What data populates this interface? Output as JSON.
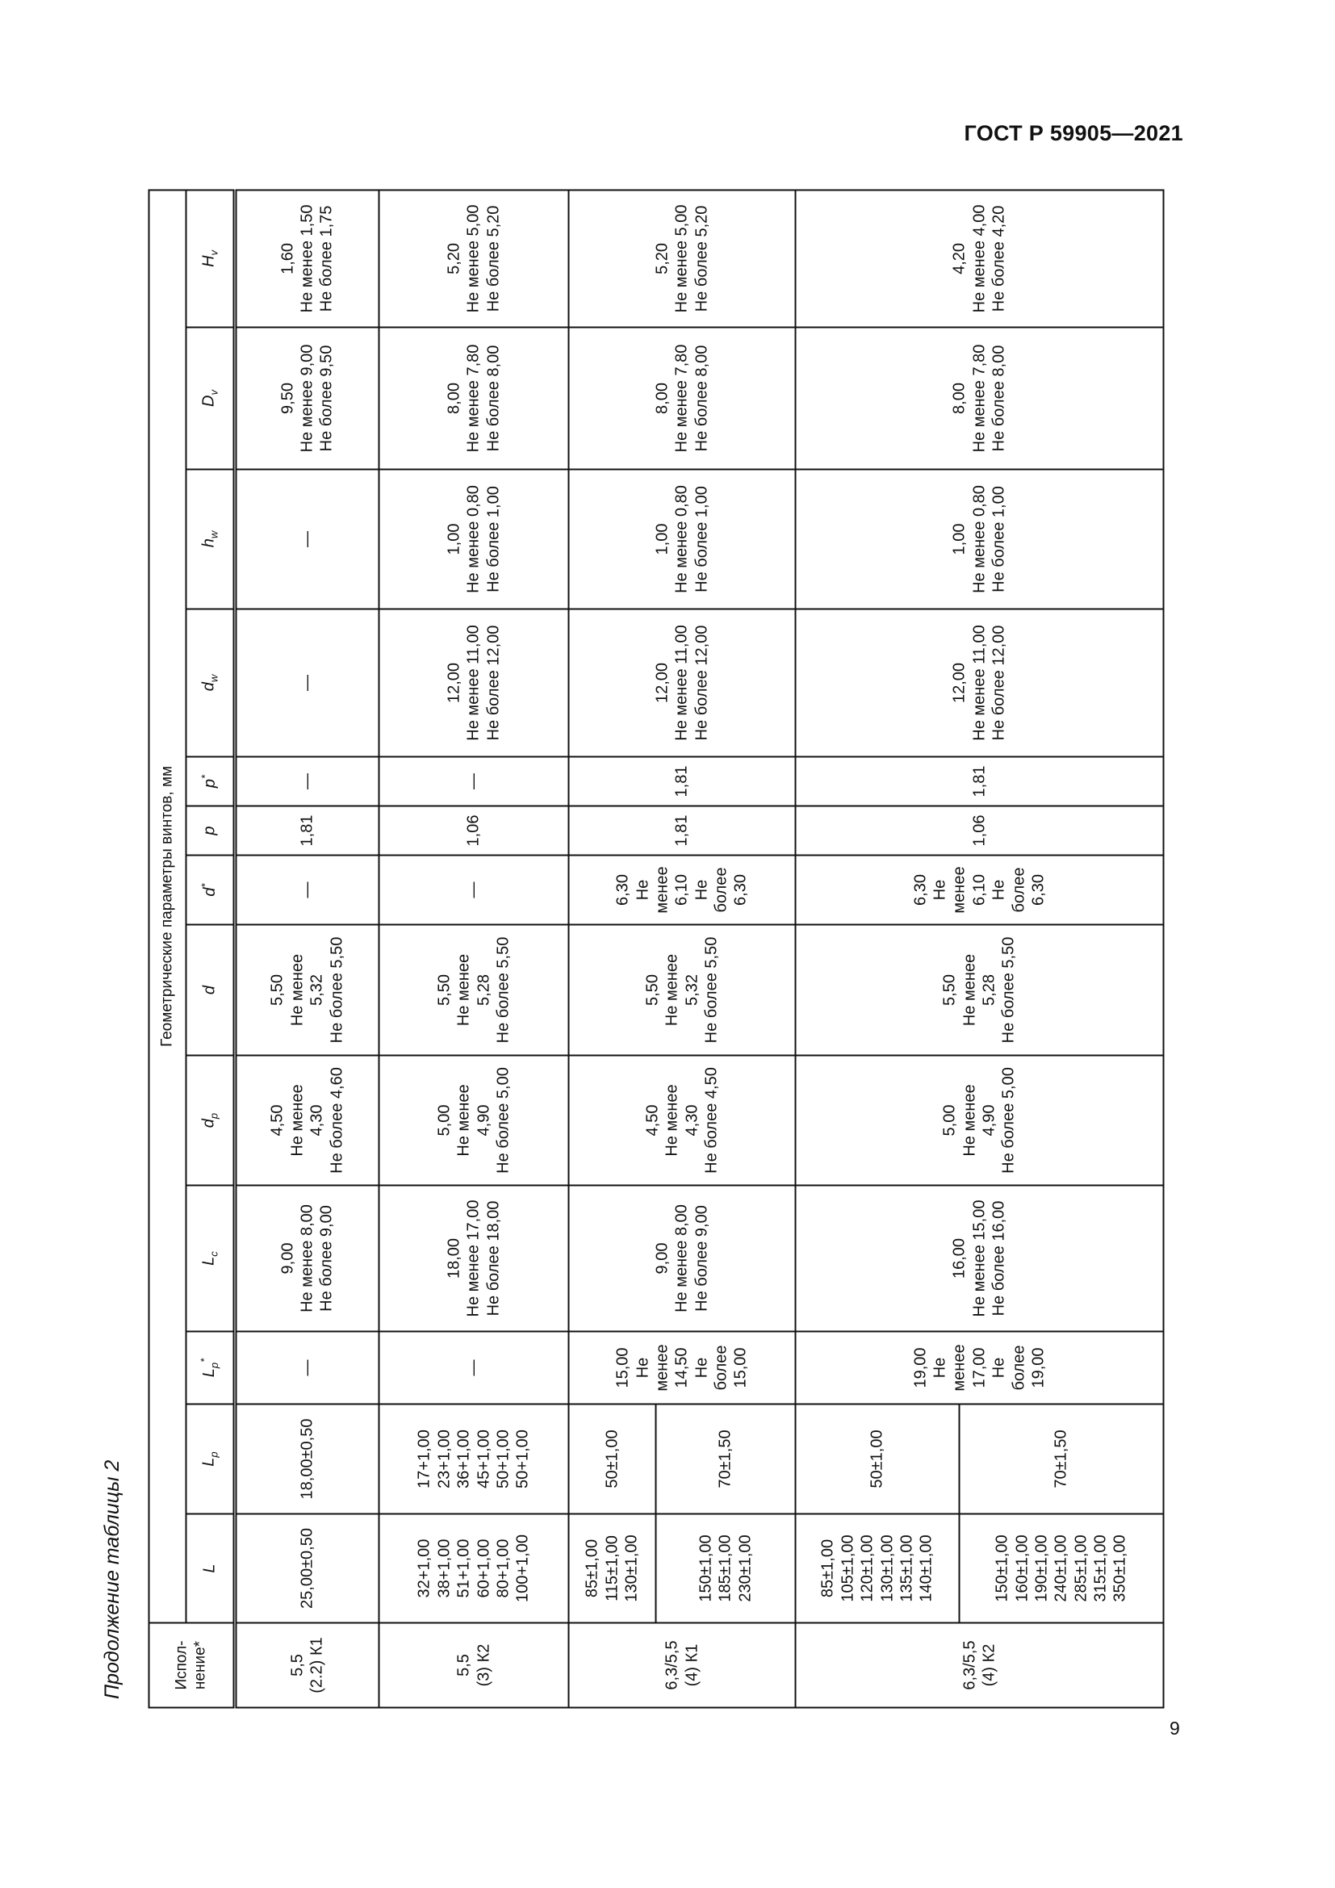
{
  "header": {
    "doc_code": "ГОСТ Р 59905—2021"
  },
  "caption": "Продолжение таблицы 2",
  "page_number": "9",
  "table": {
    "col_isp": "Испол-\nнение*",
    "group_header": "Геометрические параметры винтов, мм",
    "symbols": {
      "L": "L",
      "Lp": "L",
      "Lp_sub": "p",
      "Lps": "L",
      "Lps_sub": "p",
      "Lps_sup": "*",
      "Lc": "L",
      "Lc_sub": "c",
      "dp": "d",
      "dp_sub": "p",
      "d": "d",
      "ds": "d",
      "ds_sup": "*",
      "p": "p",
      "ps": "p",
      "ps_sup": "*",
      "dw": "d",
      "dw_sub": "w",
      "hw": "h",
      "hw_sub": "w",
      "Dv": "D",
      "Dv_sub": "v",
      "Hv": "H",
      "Hv_sub": "v"
    },
    "groups": [
      {
        "isp": "5,5\n(2.2) К1",
        "L": "25,00±0,50",
        "Lp": "18,00±0,50",
        "Lps": "—",
        "Lc": "9,00\nНе менее 8,00\nНе более 9,00",
        "dp": "4,50\nНе менее\n4,30\nНе более 4,60",
        "d": "5,50\nНе менее\n5,32\nНе более 5,50",
        "ds": "—",
        "p": "1,81",
        "ps": "—",
        "dw": "—",
        "hw": "—",
        "Dv": "9,50\nНе менее 9,00\nНе более 9,50",
        "Hv": "1,60\nНе менее 1,50\nНе более 1,75"
      },
      {
        "isp": "5,5\n(3) К2",
        "L": "32+1,00\n38+1,00\n51+1,00\n60+1,00\n80+1,00\n100+1,00",
        "Lp": "17+1,00\n23+1,00\n36+1,00\n45+1,00\n50+1,00\n50+1,00",
        "Lps": "—",
        "Lc": "18,00\nНе менее 17,00\nНе более 18,00",
        "dp": "5,00\nНе менее\n4,90\nНе более 5,00",
        "d": "5,50\nНе менее\n5,28\nНе более 5,50",
        "ds": "—",
        "p": "1,06",
        "ps": "—",
        "dw": "12,00\nНе менее 11,00\nНе более 12,00",
        "hw": "1,00\nНе менее 0,80\nНе более 1,00",
        "Dv": "8,00\nНе менее 7,80\nНе более 8,00",
        "Hv": "5,20\nНе менее 5,00\nНе более 5,20"
      },
      {
        "isp": "6,3/5,5\n(4) К1",
        "L_a": "85±1,00\n115±1,00\n130±1,00",
        "Lp_a": "50±1,00",
        "L_b": "150±1,00\n185±1,00\n230±1,00",
        "Lp_b": "70±1,50",
        "Lps": "15,00\nНе\nменее\n14,50\nНе\nболее\n15,00",
        "Lc": "9,00\nНе менее 8,00\nНе более 9,00",
        "dp": "4,50\nНе менее\n4,30\nНе более 4,50",
        "d": "5,50\nНе менее\n5,32\nНе более 5,50",
        "ds": "6,30\nНе\nменее\n6,10\nНе\nболее\n6,30",
        "p": "1,81",
        "ps": "1,81",
        "dw": "12,00\nНе менее 11,00\nНе более 12,00",
        "hw": "1,00\nНе менее 0,80\nНе более 1,00",
        "Dv": "8,00\nНе менее 7,80\nНе более 8,00",
        "Hv": "5,20\nНе менее 5,00\nНе более 5,20"
      },
      {
        "isp": "6,3/5,5\n(4) К2",
        "L_a": "85±1,00\n105±1,00\n120±1,00\n130±1,00\n135±1,00\n140±1,00",
        "Lp_a": "50±1,00",
        "L_b": "150±1,00\n160±1,00\n190±1,00\n240±1,00\n285±1,00\n315±1,00\n350±1,00",
        "Lp_b": "70±1,50",
        "Lps": "19,00\nНе\nменее\n17,00\nНе\nболее\n19,00",
        "Lc": "16,00\nНе менее 15,00\nНе более 16,00",
        "dp": "5,00\nНе менее\n4,90\nНе более 5,00",
        "d": "5,50\nНе менее\n5,28\nНе более 5,50",
        "ds": "6,30\nНе\nменее\n6,10\nНе\nболее\n6,30",
        "p": "1,06",
        "ps": "1,81",
        "dw": "12,00\nНе менее 11,00\nНе более 12,00",
        "hw": "1,00\nНе менее 0,80\nНе более 1,00",
        "Dv": "8,00\nНе менее 7,80\nНе более 8,00",
        "Hv": "4,20\nНе менее 4,00\nНе более 4,20"
      }
    ]
  }
}
